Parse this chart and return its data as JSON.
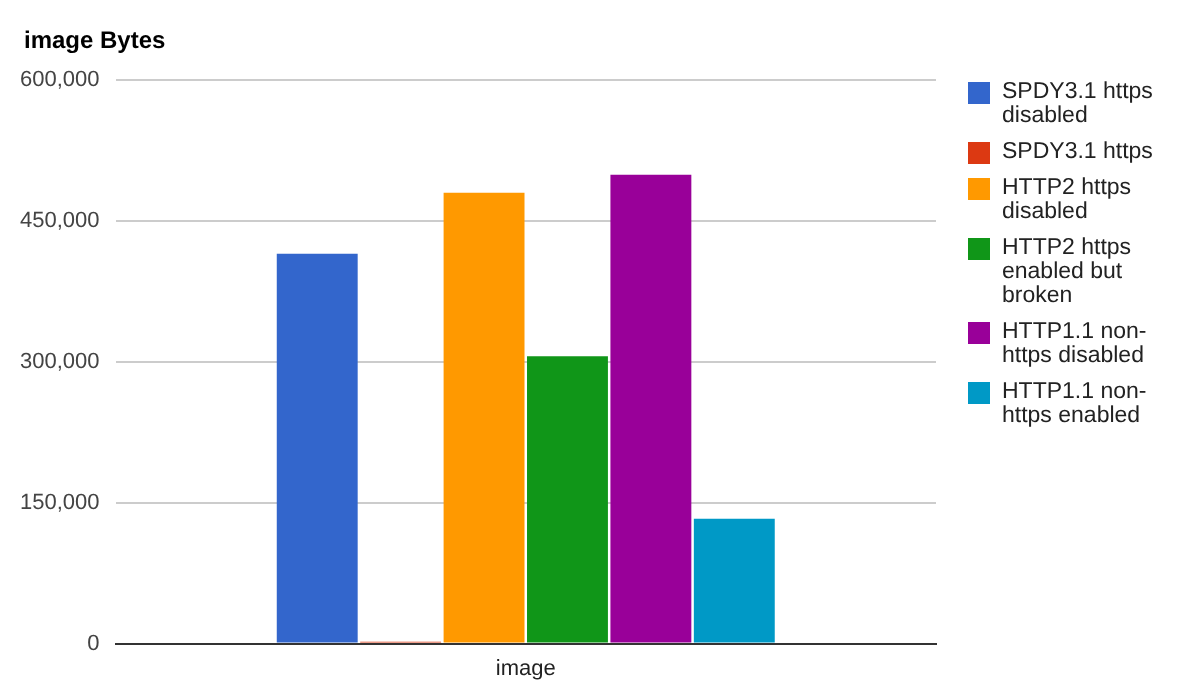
{
  "chart_data": {
    "type": "bar",
    "title": "image Bytes",
    "categories": [
      "image"
    ],
    "series": [
      {
        "name": "SPDY3.1 https disabled",
        "color": "#3366cc",
        "values": [
          415000
        ]
      },
      {
        "name": "SPDY3.1 https",
        "color": "#dc3912",
        "values": [
          2000
        ]
      },
      {
        "name": "HTTP2 https disabled",
        "color": "#ff9900",
        "values": [
          480000
        ]
      },
      {
        "name": "HTTP2 https enabled but broken",
        "color": "#109618",
        "values": [
          306000
        ]
      },
      {
        "name": "HTTP1.1 non-https disabled",
        "color": "#990099",
        "values": [
          499000
        ]
      },
      {
        "name": "HTTP1.1 non-https enabled",
        "color": "#0099c6",
        "values": [
          133000
        ]
      }
    ],
    "ylim": [
      0,
      600000
    ],
    "yticks": [
      0,
      {
        "value": 150000,
        "label": "150,000"
      },
      {
        "value": 300000,
        "label": "300,000"
      },
      {
        "value": 450000,
        "label": "450,000"
      },
      {
        "value": 600000,
        "label": "600,000"
      }
    ],
    "grid": "y",
    "legend": "right"
  }
}
